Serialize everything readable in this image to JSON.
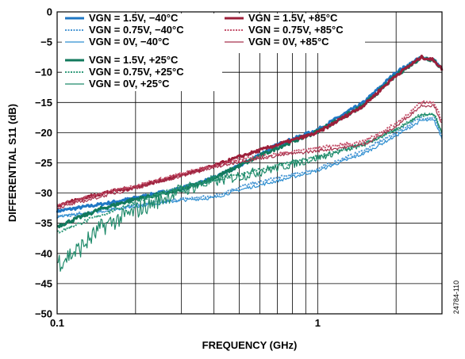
{
  "chart_data": {
    "type": "line",
    "title": "",
    "xlabel": "FREQUENCY (GHz)",
    "ylabel": "DIFFERENTIAL S11 (dB)",
    "xscale": "log",
    "xlim": [
      0.1,
      3.0
    ],
    "ylim": [
      -50,
      0
    ],
    "xticks": [
      {
        "value": 0.1,
        "label": "0.1"
      },
      {
        "value": 1,
        "label": "1"
      }
    ],
    "yticks": [
      {
        "value": 0,
        "label": "0"
      },
      {
        "value": -5,
        "label": "−5"
      },
      {
        "value": -10,
        "label": "−10"
      },
      {
        "value": -15,
        "label": "−15"
      },
      {
        "value": -20,
        "label": "−20"
      },
      {
        "value": -25,
        "label": "−25"
      },
      {
        "value": -30,
        "label": "−30"
      },
      {
        "value": -35,
        "label": "−35"
      },
      {
        "value": -40,
        "label": "−40"
      },
      {
        "value": -45,
        "label": "−45"
      },
      {
        "value": -50,
        "label": "−50"
      }
    ],
    "grid": true,
    "legend_placement": "top",
    "series": [
      {
        "name": "VGN = 1.5V, −40°C",
        "color": "#1f77c4",
        "dash": "solid",
        "width": 3,
        "noise": 0.5,
        "x": [
          0.1,
          0.15,
          0.2,
          0.3,
          0.4,
          0.5,
          0.7,
          1.0,
          1.5,
          2.0,
          2.5,
          2.8,
          3.0
        ],
        "y": [
          -33.0,
          -31.8,
          -30.8,
          -29.2,
          -27.5,
          -25.5,
          -22.0,
          -19.5,
          -15.0,
          -10.0,
          -7.5,
          -8.0,
          -9.5
        ]
      },
      {
        "name": "VGN = 0.75V, −40°C",
        "color": "#4a97d4",
        "dash": "dotted",
        "width": 2,
        "noise": 0.5,
        "x": [
          0.1,
          0.15,
          0.2,
          0.3,
          0.4,
          0.5,
          0.7,
          1.0,
          1.5,
          2.0,
          2.5,
          2.8,
          3.0
        ],
        "y": [
          -34.0,
          -32.8,
          -32.0,
          -31.0,
          -30.5,
          -29.0,
          -27.5,
          -26.0,
          -23.0,
          -20.0,
          -17.5,
          -17.5,
          -20.5
        ]
      },
      {
        "name": "VGN = 0V, −40°C",
        "color": "#2f8fd0",
        "dash": "solid",
        "width": 1.2,
        "noise": 0.5,
        "x": [
          0.1,
          0.15,
          0.2,
          0.3,
          0.4,
          0.5,
          0.7,
          1.0,
          1.5,
          2.0,
          2.5,
          2.8,
          3.0
        ],
        "y": [
          -34.0,
          -33.0,
          -32.2,
          -31.2,
          -30.8,
          -29.5,
          -28.0,
          -26.3,
          -23.5,
          -20.5,
          -18.0,
          -18.0,
          -21.0
        ]
      },
      {
        "name": "VGN = 1.5V, +25°C",
        "color": "#12795d",
        "dash": "solid",
        "width": 3,
        "noise": 0.6,
        "x": [
          0.1,
          0.15,
          0.2,
          0.3,
          0.4,
          0.5,
          0.7,
          1.0,
          1.5,
          2.0,
          2.5,
          2.8,
          3.0
        ],
        "y": [
          -35.5,
          -32.5,
          -31.0,
          -29.5,
          -27.5,
          -25.5,
          -22.5,
          -19.8,
          -15.5,
          -10.5,
          -7.5,
          -8.0,
          -9.5
        ]
      },
      {
        "name": "VGN = 0.75V, +25°C",
        "color": "#2f9a7a",
        "dash": "dotted",
        "width": 2,
        "noise": 0.6,
        "x": [
          0.1,
          0.15,
          0.2,
          0.3,
          0.4,
          0.5,
          0.7,
          1.0,
          1.5,
          2.0,
          2.5,
          2.8,
          3.0
        ],
        "y": [
          -36.5,
          -33.5,
          -31.5,
          -29.0,
          -28.0,
          -27.0,
          -25.5,
          -24.0,
          -22.0,
          -19.5,
          -17.0,
          -17.0,
          -20.0
        ]
      },
      {
        "name": "VGN = 0V, +25°C",
        "color": "#1f8a6a",
        "dash": "solid",
        "width": 1.2,
        "noise": 1.8,
        "x": [
          0.1,
          0.12,
          0.15,
          0.2,
          0.3,
          0.4,
          0.5,
          0.7,
          1.0,
          1.5,
          2.0,
          2.5,
          2.8,
          3.0
        ],
        "y": [
          -41.5,
          -39.5,
          -35.5,
          -33.0,
          -29.5,
          -28.0,
          -27.2,
          -25.8,
          -24.2,
          -22.0,
          -19.5,
          -17.0,
          -17.0,
          -20.0
        ]
      },
      {
        "name": "VGN = 1.5V, +85°C",
        "color": "#9c1f3a",
        "dash": "solid",
        "width": 3,
        "noise": 0.5,
        "x": [
          0.1,
          0.15,
          0.2,
          0.3,
          0.4,
          0.5,
          0.7,
          1.0,
          1.5,
          2.0,
          2.5,
          2.8,
          3.0
        ],
        "y": [
          -32.0,
          -30.0,
          -29.0,
          -27.0,
          -25.5,
          -24.0,
          -22.0,
          -20.0,
          -15.5,
          -10.5,
          -7.5,
          -8.0,
          -9.5
        ]
      },
      {
        "name": "VGN = 0.75V, +85°C",
        "color": "#c4506a",
        "dash": "dotted",
        "width": 2,
        "noise": 0.5,
        "x": [
          0.1,
          0.15,
          0.2,
          0.3,
          0.4,
          0.5,
          0.7,
          1.0,
          1.5,
          2.0,
          2.5,
          2.8,
          3.0
        ],
        "y": [
          -32.0,
          -30.0,
          -28.8,
          -26.8,
          -25.5,
          -24.5,
          -23.5,
          -22.5,
          -21.5,
          -18.5,
          -15.0,
          -15.0,
          -18.0
        ]
      },
      {
        "name": "VGN = 0V, +85°C",
        "color": "#a8324d",
        "dash": "solid",
        "width": 1.2,
        "noise": 0.5,
        "x": [
          0.1,
          0.15,
          0.2,
          0.3,
          0.4,
          0.5,
          0.7,
          1.0,
          1.5,
          2.0,
          2.5,
          2.8,
          3.0
        ],
        "y": [
          -32.5,
          -30.5,
          -29.2,
          -27.2,
          -25.8,
          -24.8,
          -23.8,
          -23.0,
          -22.0,
          -19.0,
          -15.5,
          -15.5,
          -18.5
        ]
      }
    ]
  },
  "figure_id": "24784-110"
}
